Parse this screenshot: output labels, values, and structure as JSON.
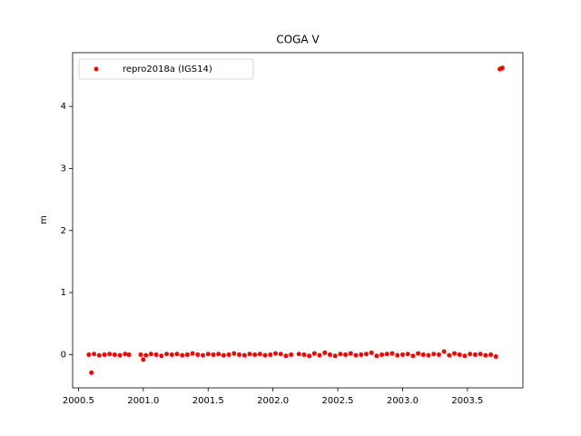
{
  "chart_data": {
    "type": "scatter",
    "title": "COGA V",
    "y_label": "m",
    "x": [
      2000.58,
      2000.62,
      2000.66,
      2000.7,
      2000.74,
      2000.78,
      2000.82,
      2000.86,
      2000.89,
      2000.98,
      2001.02,
      2001.06,
      2001.1,
      2001.14,
      2001.18,
      2001.22,
      2001.26,
      2001.3,
      2001.34,
      2001.38,
      2001.42,
      2001.46,
      2001.5,
      2001.54,
      2001.58,
      2001.62,
      2001.66,
      2001.7,
      2001.74,
      2001.78,
      2001.82,
      2001.86,
      2001.9,
      2001.94,
      2001.98,
      2002.02,
      2002.06,
      2002.1,
      2002.14,
      2002.2,
      2002.24,
      2002.28,
      2002.32,
      2002.36,
      2002.4,
      2002.44,
      2002.48,
      2002.52,
      2002.56,
      2002.6,
      2002.64,
      2002.68,
      2002.72,
      2002.76,
      2002.8,
      2002.84,
      2002.88,
      2002.92,
      2002.96,
      2003.0,
      2003.04,
      2003.08,
      2003.12,
      2003.16,
      2003.2,
      2003.24,
      2003.28,
      2003.32,
      2003.36,
      2003.4,
      2003.44,
      2003.48,
      2003.52,
      2003.56,
      2003.6,
      2003.64,
      2003.68,
      2003.72,
      2000.6,
      2001.0,
      2003.75,
      2003.76,
      2003.77
    ],
    "series": [
      {
        "name": "repro2018a (IGS14)",
        "color": "#ff0000",
        "values": [
          0,
          0.01,
          -0.01,
          0,
          0.01,
          0,
          -0.01,
          0.01,
          0,
          0,
          -0.01,
          0.01,
          0,
          -0.02,
          0.01,
          0,
          0.01,
          -0.01,
          0,
          0.02,
          0,
          -0.01,
          0.01,
          0,
          0.01,
          -0.01,
          0,
          0.02,
          0,
          -0.01,
          0.01,
          0,
          0.01,
          -0.01,
          0,
          0.02,
          0.01,
          -0.02,
          0,
          0.01,
          0,
          -0.02,
          0.02,
          -0.01,
          0.03,
          0,
          -0.02,
          0.01,
          0,
          0.02,
          -0.01,
          0,
          0.01,
          0.03,
          -0.02,
          0,
          0.01,
          0.02,
          -0.01,
          0,
          0.01,
          -0.02,
          0.02,
          0,
          -0.01,
          0.01,
          0,
          0.05,
          -0.01,
          0.02,
          0,
          -0.02,
          0.01,
          0,
          0.01,
          -0.01,
          0,
          -0.03,
          -0.29,
          -0.08,
          4.6,
          4.61,
          4.62
        ]
      }
    ],
    "xlim": [
      2000.455,
      2003.928
    ],
    "xticks": [
      2000.5,
      {
        "value": 2001.0,
        "label": "2001.0"
      },
      2001.5,
      {
        "value": 2002.0,
        "label": "2002.0"
      },
      2002.5,
      {
        "value": 2003.0,
        "label": "2003.0"
      },
      2003.5
    ],
    "ylim": [
      -0.535,
      4.865
    ],
    "yticks": [
      0,
      1,
      2,
      3,
      4
    ],
    "legend": "upper left"
  }
}
